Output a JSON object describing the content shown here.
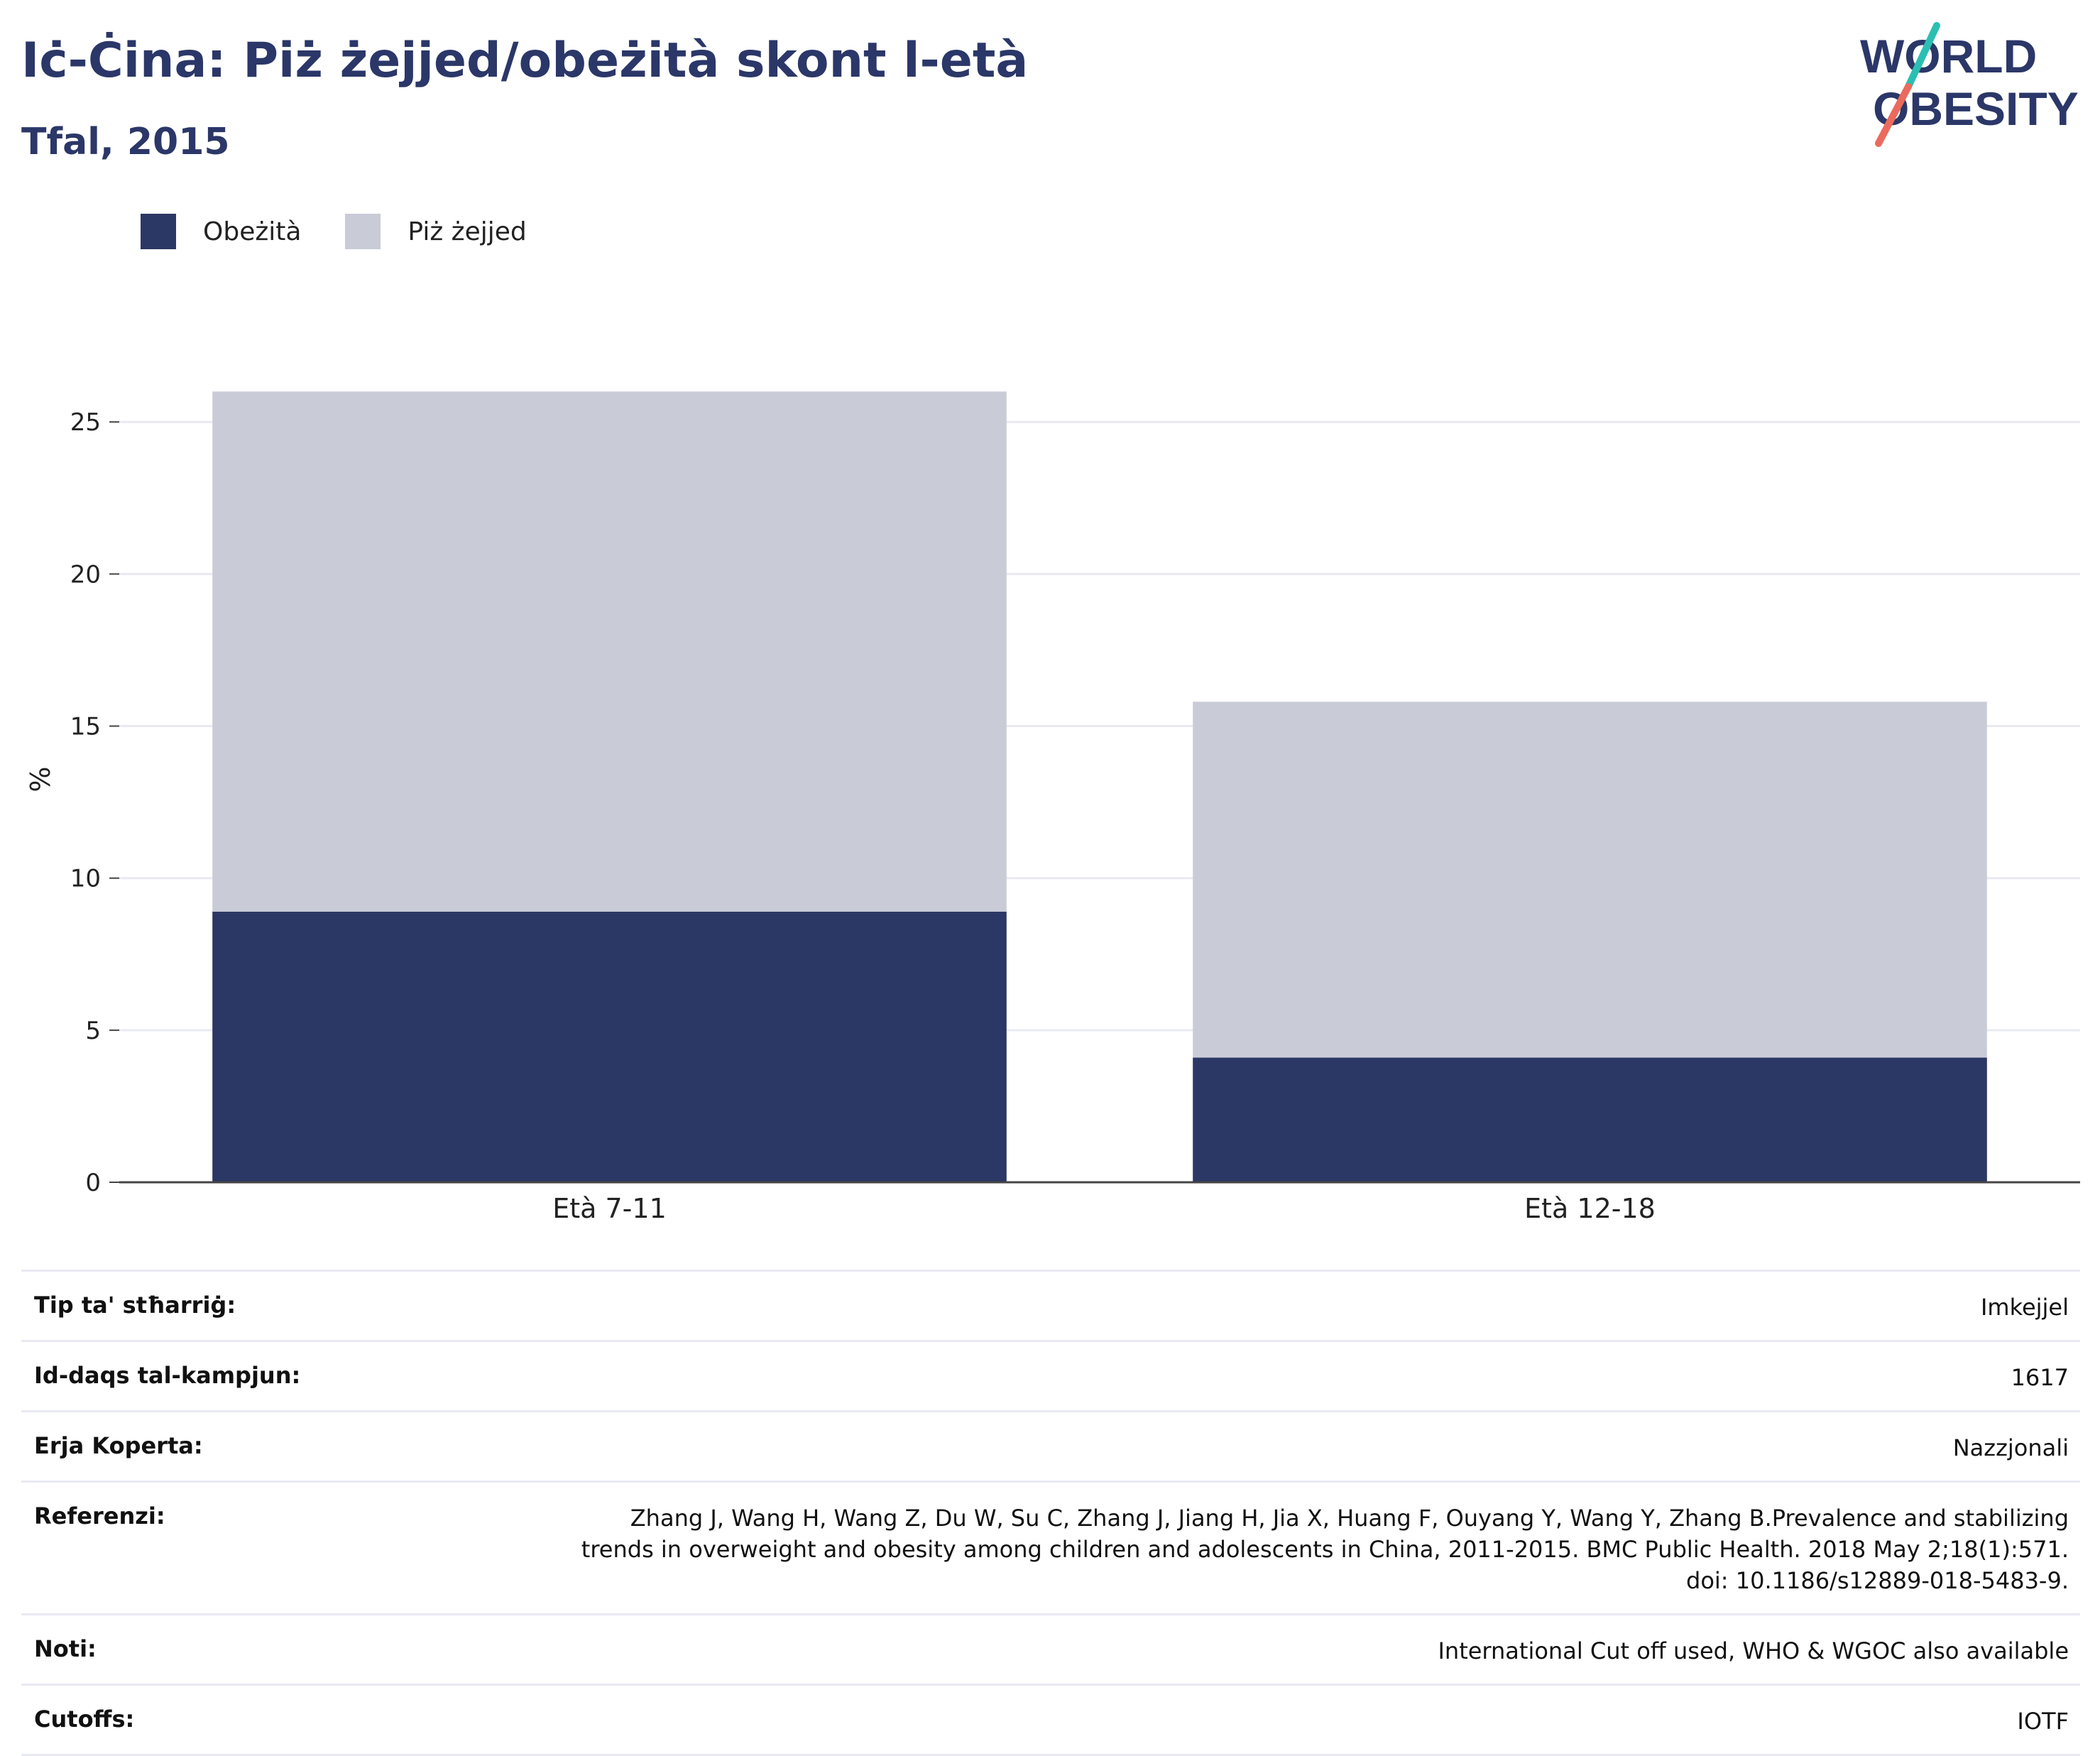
{
  "header": {
    "title": "Iċ-Ċina: Piż żejjed/obeżità skont l-età",
    "subtitle": "Tfal, 2015",
    "logo_line1": "WORLD",
    "logo_line2": "OBESITY"
  },
  "colors": {
    "obesity": "#2b3764",
    "overweight": "#c9ccd7",
    "title": "#2b3768",
    "logo_teal": "#2bbfb3",
    "logo_coral": "#ea6b5d"
  },
  "chart_data": {
    "type": "bar",
    "stacked": true,
    "categories": [
      "Età 7-11",
      "Età 12-18"
    ],
    "series": [
      {
        "name": "Obeżità",
        "values": [
          8.9,
          4.1
        ]
      },
      {
        "name": "Piż żejjed",
        "values": [
          17.1,
          11.7
        ]
      }
    ],
    "ylabel": "%",
    "ylim": [
      0,
      26.5
    ],
    "yticks": [
      0,
      5,
      10,
      15,
      20,
      25
    ],
    "grid": true,
    "legend_position": "top-left"
  },
  "info": [
    {
      "label": "Tip ta' stħarriġ:",
      "value": "Imkejjel"
    },
    {
      "label": "Id-daqs tal-kampjun:",
      "value": "1617"
    },
    {
      "label": "Erja Koperta:",
      "value": "Nazzjonali"
    },
    {
      "label": "Referenzi:",
      "value": "Zhang J, Wang H, Wang Z, Du W, Su C, Zhang J, Jiang H, Jia X, Huang F, Ouyang Y, Wang Y, Zhang B.Prevalence and stabilizing trends in overweight and obesity among children and adolescents in China, 2011-2015. BMC Public Health. 2018 May 2;18(1):571. doi: 10.1186/s12889-018-5483-9."
    },
    {
      "label": "Noti:",
      "value": "International Cut off used, WHO & WGOC also available"
    },
    {
      "label": "Cutoffs:",
      "value": "IOTF"
    }
  ]
}
